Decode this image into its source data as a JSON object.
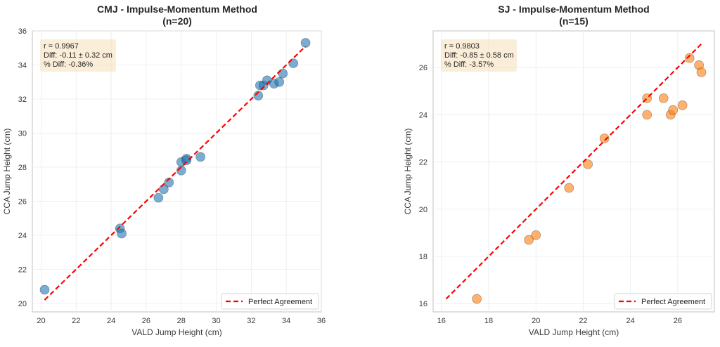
{
  "chart_data": [
    {
      "type": "scatter",
      "title": "CMJ - Impulse-Momentum Method",
      "subtitle": "(n=20)",
      "xlabel": "VALD Jump Height (cm)",
      "ylabel": "CCA Jump Height (cm)",
      "xlim": [
        19.5,
        36.0
      ],
      "ylim": [
        19.5,
        36.0
      ],
      "xticks": [
        20,
        22,
        24,
        26,
        28,
        30,
        32,
        34,
        36
      ],
      "yticks": [
        20,
        22,
        24,
        26,
        28,
        30,
        32,
        34,
        36
      ],
      "grid": true,
      "point_color": "#1f77b4",
      "series": [
        {
          "name": "CMJ",
          "x": [
            20.2,
            24.5,
            24.6,
            26.7,
            27.0,
            27.3,
            28.0,
            28.0,
            28.3,
            28.3,
            29.1,
            32.4,
            32.5,
            32.7,
            32.9,
            33.3,
            33.6,
            33.8,
            34.4,
            35.1
          ],
          "y": [
            20.8,
            24.4,
            24.1,
            26.2,
            26.7,
            27.1,
            27.8,
            28.3,
            28.5,
            28.4,
            28.6,
            32.2,
            32.8,
            32.8,
            33.1,
            32.9,
            33.0,
            33.5,
            34.1,
            35.3
          ]
        }
      ],
      "reference_line": {
        "label": "Perfect Agreement",
        "from": [
          20.2,
          20.2
        ],
        "to": [
          35.1,
          35.1
        ],
        "color": "#ff0000",
        "style": "dashed"
      },
      "legend": {
        "position": "lower-right",
        "entries": [
          "Perfect Agreement"
        ]
      },
      "annotation": {
        "position": "top-left",
        "lines": [
          "r = 0.9967",
          "Diff: -0.11 ± 0.32 cm",
          "% Diff: -0.36%"
        ]
      }
    },
    {
      "type": "scatter",
      "title": "SJ - Impulse-Momentum Method",
      "subtitle": "(n=15)",
      "xlabel": "VALD Jump Height (cm)",
      "ylabel": "CCA Jump Height (cm)",
      "xlim": [
        15.65,
        27.55
      ],
      "ylim": [
        15.65,
        27.55
      ],
      "xticks": [
        16,
        18,
        20,
        22,
        24,
        26
      ],
      "yticks": [
        16,
        18,
        20,
        22,
        24,
        26
      ],
      "grid": true,
      "point_color": "#ff7f0e",
      "series": [
        {
          "name": "SJ",
          "x": [
            17.5,
            19.7,
            20.0,
            21.4,
            22.2,
            22.9,
            24.7,
            24.7,
            25.4,
            25.7,
            25.8,
            26.2,
            26.5,
            26.9,
            27.0
          ],
          "y": [
            16.2,
            18.7,
            18.9,
            20.9,
            21.9,
            23.0,
            24.7,
            24.0,
            24.7,
            24.0,
            24.2,
            24.4,
            26.4,
            26.1,
            25.8
          ]
        }
      ],
      "reference_line": {
        "label": "Perfect Agreement",
        "from": [
          16.2,
          16.2
        ],
        "to": [
          27.0,
          27.0
        ],
        "color": "#ff0000",
        "style": "dashed"
      },
      "legend": {
        "position": "lower-right",
        "entries": [
          "Perfect Agreement"
        ]
      },
      "annotation": {
        "position": "top-left",
        "lines": [
          "r = 0.9803",
          "Diff: -0.85 ± 0.58 cm",
          "% Diff: -3.57%"
        ]
      }
    }
  ]
}
